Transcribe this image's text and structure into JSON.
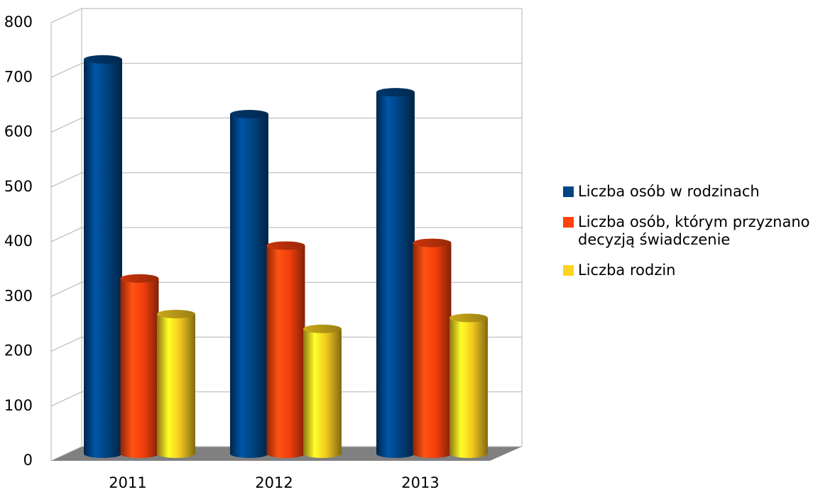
{
  "chart_data": {
    "type": "bar",
    "categories": [
      "2011",
      "2012",
      "2013"
    ],
    "series": [
      {
        "name": "Liczba osób w rodzinach",
        "color": "#004586",
        "values": [
          720,
          620,
          660
        ]
      },
      {
        "name": "Liczba osób, którym przyznano decyzją świadczenie",
        "color": "#ff420e",
        "values": [
          320,
          380,
          385
        ]
      },
      {
        "name": "Liczba rodzin",
        "color": "#ffd320",
        "values": [
          255,
          228,
          248
        ]
      }
    ],
    "ylim": [
      0,
      800
    ],
    "yticks": [
      0,
      100,
      200,
      300,
      400,
      500,
      600,
      700,
      800
    ],
    "grid": true,
    "legend": "right"
  }
}
